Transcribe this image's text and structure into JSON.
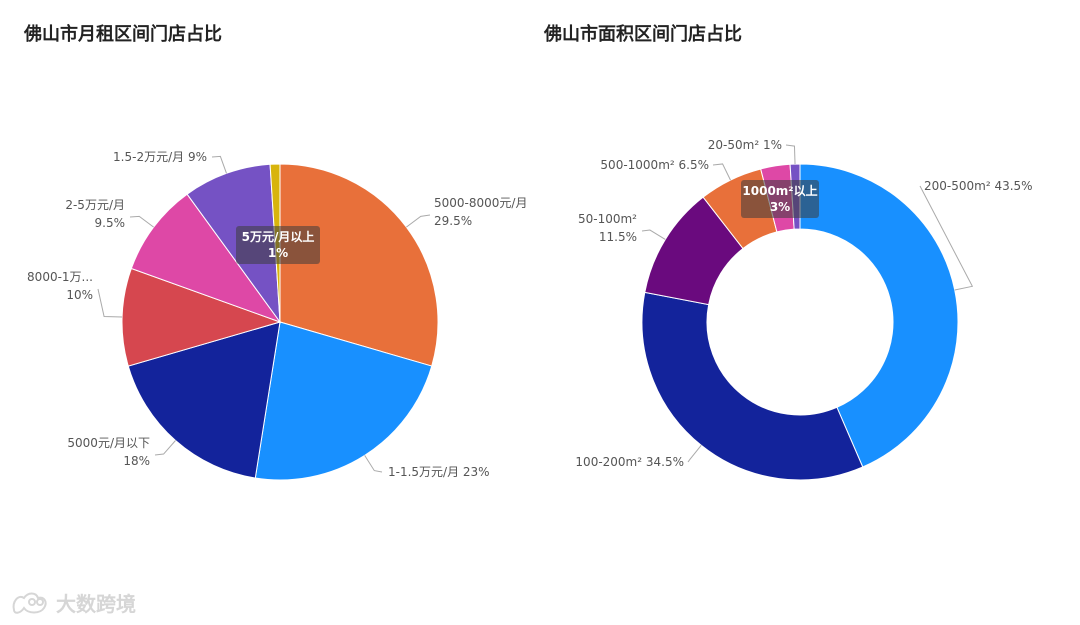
{
  "watermark": {
    "text": "大数跨境"
  },
  "chart_data": [
    {
      "type": "pie",
      "title": "佛山市月租区间门店占比",
      "slices": [
        {
          "label": "5000-8000元/月",
          "value": 29.5,
          "value_label": "29.5%",
          "color": "#E8703A"
        },
        {
          "label": "1-1.5万元/月",
          "value": 23,
          "value_label": "23%",
          "color": "#1890FF"
        },
        {
          "label": "5000元/月以下",
          "value": 18,
          "value_label": "18%",
          "color": "#13239B"
        },
        {
          "label": "8000-1万...",
          "value": 10,
          "value_label": "10%",
          "color": "#D6474F"
        },
        {
          "label": "2-5万元/月",
          "value": 9.5,
          "value_label": "9.5%",
          "color": "#DE48A6"
        },
        {
          "label": "1.5-2万元/月",
          "value": 9,
          "value_label": "9%",
          "color": "#7552C4"
        },
        {
          "label": "5万元/月以上",
          "value": 1,
          "value_label": "1%",
          "color": "#D8B40C"
        }
      ],
      "tooltip": {
        "label": "5万元/月以上",
        "value_label": "1%"
      }
    },
    {
      "type": "pie",
      "title": "佛山市面积区间门店占比",
      "slices": [
        {
          "label": "200-500m² 43.5%",
          "value": 43.5,
          "value_label": "43.5%",
          "color": "#1890FF"
        },
        {
          "label": "100-200m² 34.5%",
          "value": 34.5,
          "value_label": "34.5%",
          "color": "#13239B"
        },
        {
          "label": "50-100m²",
          "value": 11.5,
          "value_label": "11.5%",
          "color": "#6A0A7E"
        },
        {
          "label": "500-1000m² 6.5%",
          "value": 6.5,
          "value_label": "6.5%",
          "color": "#E8703A"
        },
        {
          "label": "1000m²以上",
          "value": 3,
          "value_label": "3%",
          "color": "#DE48A6"
        },
        {
          "label": "20-50m² 1%",
          "value": 1,
          "value_label": "1%",
          "color": "#7552C4"
        }
      ],
      "tooltip": {
        "label": "1000m²以上",
        "value_label": "3%"
      }
    }
  ]
}
